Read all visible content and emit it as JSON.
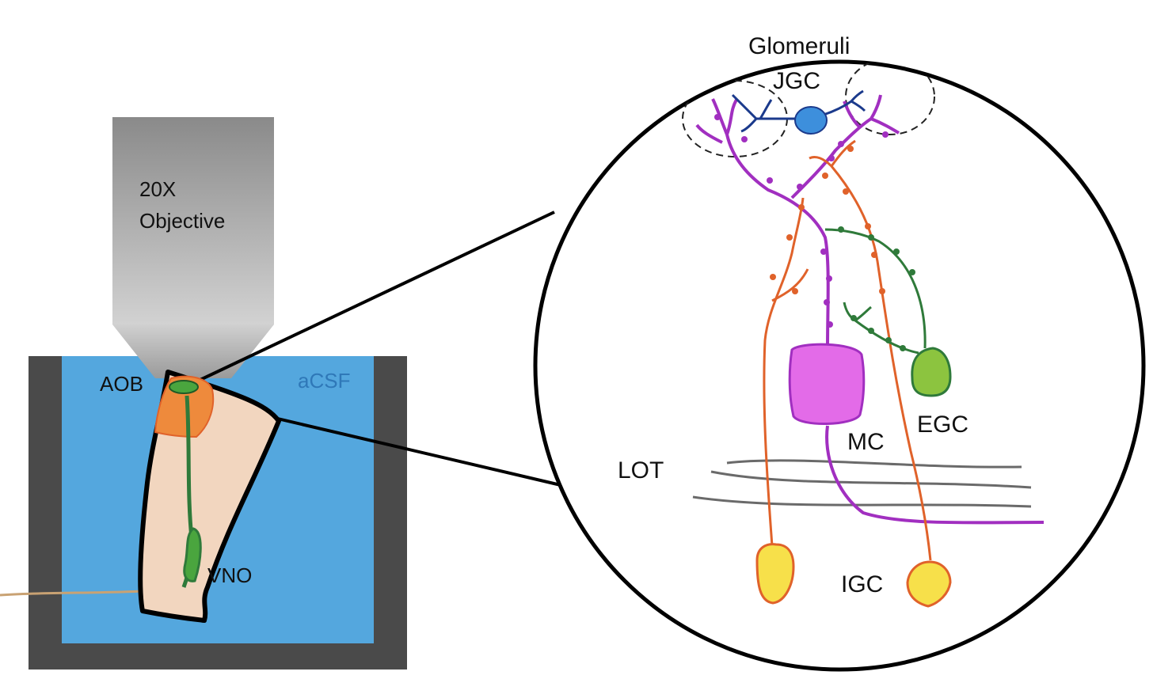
{
  "labels": {
    "objective_line1": "20X",
    "objective_line2": "Objective",
    "aob": "AOB",
    "acsf": "aCSF",
    "vno": "VNO",
    "glomeruli": "Glomeruli",
    "jgc": "JGC",
    "lot": "LOT",
    "mc": "MC",
    "egc": "EGC",
    "igc": "IGC"
  },
  "colors": {
    "chamber_wall": "#4a4a4a",
    "acsf_bath": "#54a7de",
    "acsf_text": "#2f78b8",
    "slice_fill": "#f2d6bf",
    "aob_region": "#ee8a3c",
    "vomeronasal_nerve": "#2f7a3a",
    "mitral_cell": "#e36be8",
    "mitral_dendrite": "#a12fc0",
    "granule_cell": "#f7e04a",
    "granule_outline": "#e0622a",
    "external_granule_cell": "#8cc43f",
    "juxtaglomerular_cell": "#3d8fdc",
    "jgc_dendrite": "#1b3a8c",
    "lot_fibers": "#6a6a6a"
  }
}
